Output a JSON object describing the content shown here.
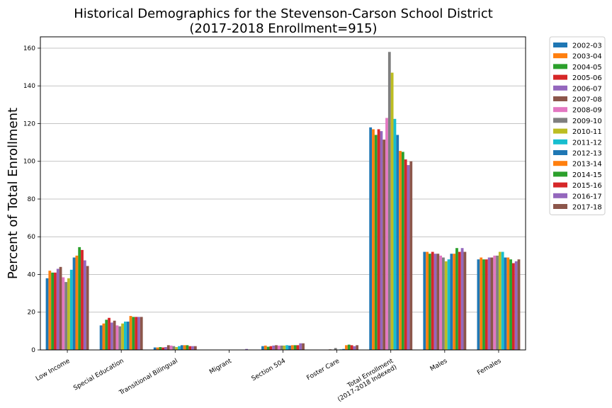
{
  "chart_data": {
    "type": "bar",
    "title": "Historical Demographics for the Stevenson-Carson School District",
    "subtitle": "(2017-2018 Enrollment=915)",
    "ylabel": "Percent of Total Enrollment",
    "xlabel": "",
    "ylim": [
      0,
      166
    ],
    "yticks": [
      0,
      20,
      40,
      60,
      80,
      100,
      120,
      140,
      160
    ],
    "grid": "horizontal",
    "legend": "outside-right",
    "categories": [
      "Low Income",
      "Special Education",
      "Transitional Bilingual",
      "Migrant",
      "Section 504",
      "Foster Care",
      "Total Enrollment\n(2017-2018 Indexed)",
      "Males",
      "Females"
    ],
    "series": [
      {
        "name": "2002-03",
        "color": "#1f77b4",
        "values": [
          38,
          13,
          1.3,
          0,
          2,
          0,
          118,
          52,
          48
        ]
      },
      {
        "name": "2003-04",
        "color": "#ff7f0e",
        "values": [
          42,
          14,
          1.3,
          0,
          2.3,
          0,
          117,
          52,
          49
        ]
      },
      {
        "name": "2004-05",
        "color": "#2ca02c",
        "values": [
          41,
          16,
          1.5,
          0,
          1.7,
          0,
          114,
          51,
          48
        ]
      },
      {
        "name": "2005-06",
        "color": "#d62728",
        "values": [
          41,
          17,
          1.3,
          0,
          2,
          0,
          117,
          52,
          48
        ]
      },
      {
        "name": "2006-07",
        "color": "#9467bd",
        "values": [
          43,
          14.5,
          1.5,
          0,
          2.3,
          0,
          116,
          51,
          49
        ]
      },
      {
        "name": "2007-08",
        "color": "#8c564b",
        "values": [
          44,
          15.5,
          2.5,
          0,
          2.5,
          0.3,
          111.5,
          51,
          49
        ]
      },
      {
        "name": "2008-09",
        "color": "#e377c2",
        "values": [
          38.5,
          13,
          2.3,
          0,
          2.3,
          0,
          123,
          50,
          50
        ]
      },
      {
        "name": "2009-10",
        "color": "#7f7f7f",
        "values": [
          36,
          12.5,
          2,
          0,
          2.3,
          1,
          158,
          49,
          50
        ]
      },
      {
        "name": "2010-11",
        "color": "#bcbd22",
        "values": [
          38,
          14,
          1.5,
          0,
          2.3,
          0,
          147,
          47,
          52
        ]
      },
      {
        "name": "2011-12",
        "color": "#17becf",
        "values": [
          42.5,
          15,
          2,
          0,
          2.5,
          0.3,
          122.5,
          48,
          52
        ]
      },
      {
        "name": "2012-13",
        "color": "#1f77b4",
        "values": [
          49,
          15,
          2.5,
          0,
          2.3,
          0.5,
          114,
          51,
          49
        ]
      },
      {
        "name": "2013-14",
        "color": "#ff7f0e",
        "values": [
          50,
          18,
          2.5,
          0,
          2.5,
          2.5,
          105.5,
          51,
          49
        ]
      },
      {
        "name": "2014-15",
        "color": "#2ca02c",
        "values": [
          54.5,
          17.5,
          2.5,
          0,
          2.5,
          2.8,
          105,
          54,
          48
        ]
      },
      {
        "name": "2015-16",
        "color": "#d62728",
        "values": [
          53,
          17.5,
          2,
          0,
          2.5,
          2.5,
          101,
          52,
          46
        ]
      },
      {
        "name": "2016-17",
        "color": "#9467bd",
        "values": [
          47.5,
          17.5,
          2,
          0.5,
          3.5,
          2,
          98,
          54,
          47
        ]
      },
      {
        "name": "2017-18",
        "color": "#8c564b",
        "values": [
          44.5,
          17.5,
          2,
          0,
          3.5,
          2.5,
          100,
          52,
          48
        ]
      }
    ]
  }
}
